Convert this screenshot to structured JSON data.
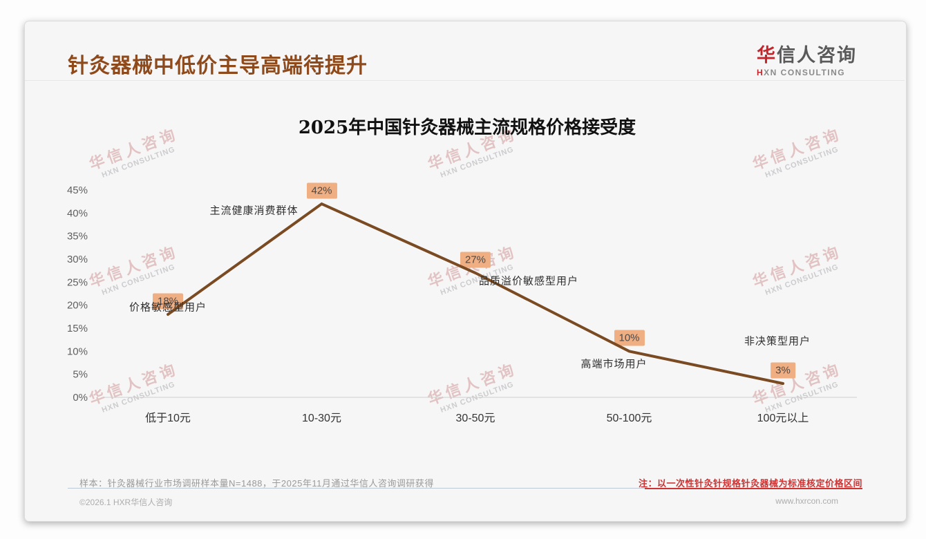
{
  "page": {
    "title": "针灸器械中低价主导高端待提升"
  },
  "logo": {
    "accent": "华",
    "rest": "信人咨询",
    "subtitle_accent": "H",
    "subtitle_rest": "XN CONSULTING"
  },
  "chart_data": {
    "type": "line",
    "title": "2025年中国针灸器械主流规格价格接受度",
    "categories": [
      "低于10元",
      "10-30元",
      "30-50元",
      "50-100元",
      "100元以上"
    ],
    "values": [
      18,
      42,
      27,
      10,
      3
    ],
    "value_labels": [
      "18%",
      "42%",
      "27%",
      "10%",
      "3%"
    ],
    "annotations": [
      "价格敏感型用户",
      "主流健康消费群体",
      "品质溢价敏感型用户",
      "高端市场用户",
      "非决策型用户"
    ],
    "ylabel": "",
    "xlabel": "",
    "ylim": [
      0,
      45
    ],
    "ytick_step": 5,
    "ytick_suffix": "%",
    "grid": false,
    "legend": false,
    "line_color": "#7a4b22",
    "badge_bg": "#f0ae83",
    "axis_color": "#cfcfcf"
  },
  "watermark": {
    "line1": "华信人咨询",
    "line2": "HXN CONSULTING"
  },
  "footer": {
    "sample": "样本：针灸器械行业市场调研样本量N=1488，于2025年11月通过华信人咨询调研获得",
    "note": "注：以一次性针灸针规格针灸器械为标准核定价格区间",
    "copyright": "©2026.1 HXR华信人咨询",
    "website": "www.hxrcon.com"
  }
}
